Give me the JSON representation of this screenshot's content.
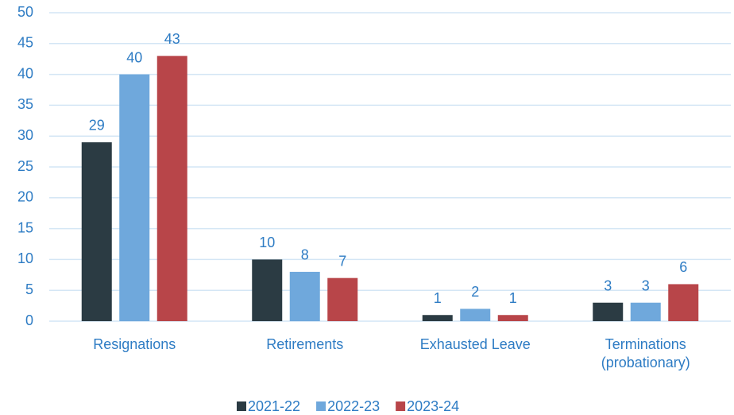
{
  "chart_data": {
    "type": "bar",
    "categories": [
      "Resignations",
      "Retirements",
      "Exhausted Leave",
      "Terminations (probationary)"
    ],
    "series": [
      {
        "name": "2021-22",
        "color": "#2b3b43",
        "values": [
          29,
          10,
          1,
          3
        ]
      },
      {
        "name": "2022-23",
        "color": "#6fa8dc",
        "values": [
          40,
          8,
          2,
          3
        ]
      },
      {
        "name": "2023-24",
        "color": "#b84549",
        "values": [
          43,
          7,
          1,
          6
        ]
      }
    ],
    "ylim": [
      0,
      50
    ],
    "yticks": [
      0,
      5,
      10,
      15,
      20,
      25,
      30,
      35,
      40,
      45,
      50
    ],
    "grid": true,
    "legend": "bottom"
  }
}
